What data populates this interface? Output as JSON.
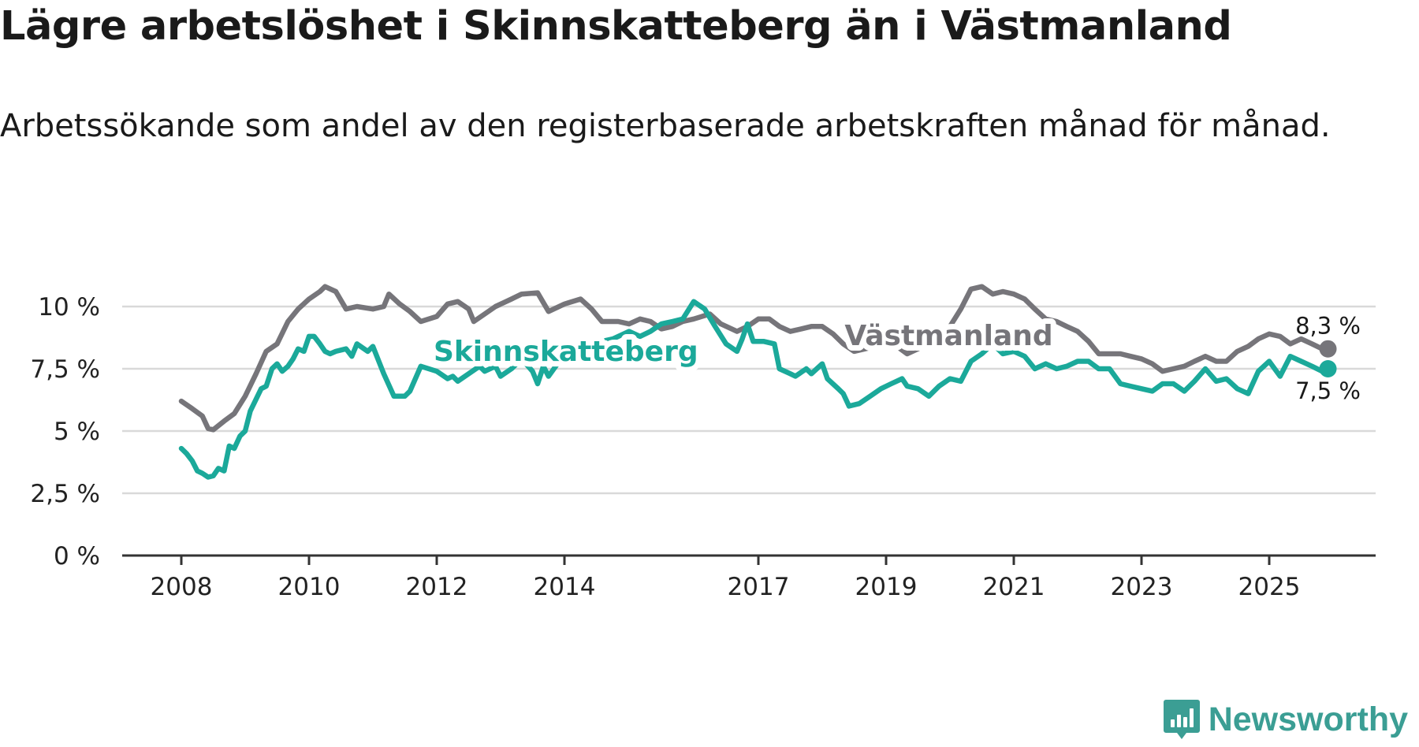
{
  "title": "Lägre arbetslöshet i Skinnskatteberg än i Västmanland",
  "subtitle": "Arbetssökande som andel av den registerbaserade arbetskraften månad för månad.",
  "brand": {
    "name": "Newsworthy",
    "icon": "newsworthy-logo-icon",
    "color": "#3b9e94"
  },
  "chart_data": {
    "type": "line",
    "title": "Lägre arbetslöshet i Skinnskatteberg än i Västmanland",
    "subtitle": "Arbetssökande som andel av den registerbaserade arbetskraften månad för månad.",
    "xlabel": "",
    "ylabel": "",
    "xlim": [
      2008,
      2026
    ],
    "ylim": [
      0,
      10.5
    ],
    "y_ticks": [
      0,
      2.5,
      5,
      7.5,
      10
    ],
    "y_tick_labels": [
      "0 %",
      "2,5 %",
      "5 %",
      "7,5 %",
      "10 %"
    ],
    "x_ticks": [
      2008,
      2010,
      2012,
      2014,
      2017,
      2019,
      2021,
      2023,
      2025
    ],
    "x_tick_labels": [
      "2008",
      "2010",
      "2012",
      "2014",
      "2017",
      "2019",
      "2021",
      "2023",
      "2025"
    ],
    "grid": true,
    "series": [
      {
        "name": "Västmanland",
        "color": "#76757a",
        "label_position": "2018.2",
        "end_label": "8,3 %",
        "points": [
          [
            2008.0,
            6.2
          ],
          [
            2008.17,
            5.9
          ],
          [
            2008.33,
            5.6
          ],
          [
            2008.42,
            5.1
          ],
          [
            2008.5,
            5.05
          ],
          [
            2008.67,
            5.4
          ],
          [
            2008.83,
            5.7
          ],
          [
            2009.0,
            6.4
          ],
          [
            2009.17,
            7.3
          ],
          [
            2009.33,
            8.2
          ],
          [
            2009.5,
            8.5
          ],
          [
            2009.67,
            9.4
          ],
          [
            2009.83,
            9.9
          ],
          [
            2010.0,
            10.3
          ],
          [
            2010.17,
            10.6
          ],
          [
            2010.25,
            10.8
          ],
          [
            2010.42,
            10.6
          ],
          [
            2010.58,
            9.9
          ],
          [
            2010.75,
            10.0
          ],
          [
            2011.0,
            9.9
          ],
          [
            2011.17,
            10.0
          ],
          [
            2011.25,
            10.5
          ],
          [
            2011.42,
            10.1
          ],
          [
            2011.58,
            9.8
          ],
          [
            2011.75,
            9.4
          ],
          [
            2012.0,
            9.6
          ],
          [
            2012.17,
            10.1
          ],
          [
            2012.33,
            10.2
          ],
          [
            2012.5,
            9.9
          ],
          [
            2012.58,
            9.4
          ],
          [
            2012.75,
            9.7
          ],
          [
            2012.92,
            10.0
          ],
          [
            2013.17,
            10.3
          ],
          [
            2013.33,
            10.5
          ],
          [
            2013.58,
            10.55
          ],
          [
            2013.75,
            9.8
          ],
          [
            2014.0,
            10.1
          ],
          [
            2014.25,
            10.3
          ],
          [
            2014.42,
            9.9
          ],
          [
            2014.58,
            9.4
          ],
          [
            2014.83,
            9.4
          ],
          [
            2015.0,
            9.3
          ],
          [
            2015.17,
            9.5
          ],
          [
            2015.33,
            9.4
          ],
          [
            2015.5,
            9.1
          ],
          [
            2015.67,
            9.2
          ],
          [
            2015.83,
            9.4
          ],
          [
            2016.0,
            9.5
          ],
          [
            2016.25,
            9.7
          ],
          [
            2016.42,
            9.3
          ],
          [
            2016.67,
            9.0
          ],
          [
            2016.83,
            9.2
          ],
          [
            2017.0,
            9.5
          ],
          [
            2017.17,
            9.5
          ],
          [
            2017.33,
            9.2
          ],
          [
            2017.5,
            9.0
          ],
          [
            2017.67,
            9.1
          ],
          [
            2017.83,
            9.2
          ],
          [
            2018.0,
            9.2
          ],
          [
            2018.17,
            8.9
          ],
          [
            2018.33,
            8.5
          ],
          [
            2018.5,
            8.2
          ],
          [
            2018.67,
            8.3
          ],
          [
            2018.83,
            8.4
          ],
          [
            2019.0,
            8.5
          ],
          [
            2019.17,
            8.4
          ],
          [
            2019.33,
            8.1
          ],
          [
            2019.5,
            8.3
          ],
          [
            2019.67,
            8.6
          ],
          [
            2019.83,
            8.7
          ],
          [
            2020.0,
            9.2
          ],
          [
            2020.17,
            9.9
          ],
          [
            2020.33,
            10.7
          ],
          [
            2020.5,
            10.8
          ],
          [
            2020.67,
            10.5
          ],
          [
            2020.83,
            10.6
          ],
          [
            2021.0,
            10.5
          ],
          [
            2021.17,
            10.3
          ],
          [
            2021.33,
            9.9
          ],
          [
            2021.5,
            9.5
          ],
          [
            2021.67,
            9.4
          ],
          [
            2021.83,
            9.2
          ],
          [
            2022.0,
            9.0
          ],
          [
            2022.17,
            8.6
          ],
          [
            2022.33,
            8.1
          ],
          [
            2022.5,
            8.1
          ],
          [
            2022.67,
            8.1
          ],
          [
            2022.83,
            8.0
          ],
          [
            2023.0,
            7.9
          ],
          [
            2023.17,
            7.7
          ],
          [
            2023.33,
            7.4
          ],
          [
            2023.5,
            7.5
          ],
          [
            2023.67,
            7.6
          ],
          [
            2023.83,
            7.8
          ],
          [
            2024.0,
            8.0
          ],
          [
            2024.17,
            7.8
          ],
          [
            2024.33,
            7.8
          ],
          [
            2024.5,
            8.2
          ],
          [
            2024.67,
            8.4
          ],
          [
            2024.83,
            8.7
          ],
          [
            2025.0,
            8.9
          ],
          [
            2025.17,
            8.8
          ],
          [
            2025.33,
            8.5
          ],
          [
            2025.5,
            8.7
          ],
          [
            2025.67,
            8.5
          ],
          [
            2025.83,
            8.3
          ],
          [
            2025.92,
            8.3
          ]
        ]
      },
      {
        "name": "Skinnskatteberg",
        "color": "#1ba99a",
        "label_position": "2010.9",
        "end_label": "7,5 %",
        "points": [
          [
            2008.0,
            4.3
          ],
          [
            2008.08,
            4.1
          ],
          [
            2008.17,
            3.8
          ],
          [
            2008.25,
            3.4
          ],
          [
            2008.33,
            3.3
          ],
          [
            2008.42,
            3.15
          ],
          [
            2008.5,
            3.2
          ],
          [
            2008.58,
            3.5
          ],
          [
            2008.67,
            3.4
          ],
          [
            2008.75,
            4.4
          ],
          [
            2008.83,
            4.3
          ],
          [
            2008.92,
            4.8
          ],
          [
            2009.0,
            5.0
          ],
          [
            2009.08,
            5.8
          ],
          [
            2009.25,
            6.7
          ],
          [
            2009.33,
            6.8
          ],
          [
            2009.42,
            7.5
          ],
          [
            2009.5,
            7.7
          ],
          [
            2009.58,
            7.4
          ],
          [
            2009.67,
            7.6
          ],
          [
            2009.75,
            7.9
          ],
          [
            2009.83,
            8.3
          ],
          [
            2009.92,
            8.2
          ],
          [
            2010.0,
            8.8
          ],
          [
            2010.08,
            8.8
          ],
          [
            2010.17,
            8.5
          ],
          [
            2010.25,
            8.2
          ],
          [
            2010.33,
            8.1
          ],
          [
            2010.42,
            8.2
          ],
          [
            2010.58,
            8.3
          ],
          [
            2010.67,
            8.0
          ],
          [
            2010.75,
            8.5
          ],
          [
            2010.92,
            8.2
          ],
          [
            2011.0,
            8.4
          ],
          [
            2011.17,
            7.3
          ],
          [
            2011.33,
            6.4
          ],
          [
            2011.5,
            6.4
          ],
          [
            2011.58,
            6.6
          ],
          [
            2011.75,
            7.6
          ],
          [
            2012.0,
            7.4
          ],
          [
            2012.17,
            7.1
          ],
          [
            2012.25,
            7.2
          ],
          [
            2012.33,
            7.0
          ],
          [
            2012.5,
            7.3
          ],
          [
            2012.67,
            7.6
          ],
          [
            2012.75,
            7.4
          ],
          [
            2012.92,
            7.6
          ],
          [
            2013.0,
            7.2
          ],
          [
            2013.17,
            7.5
          ],
          [
            2013.33,
            7.9
          ],
          [
            2013.5,
            7.4
          ],
          [
            2013.58,
            6.9
          ],
          [
            2013.67,
            7.6
          ],
          [
            2013.75,
            7.2
          ],
          [
            2013.92,
            7.8
          ],
          [
            2014.08,
            7.8
          ],
          [
            2014.33,
            8.1
          ],
          [
            2014.58,
            8.6
          ],
          [
            2014.75,
            8.7
          ],
          [
            2015.0,
            9.0
          ],
          [
            2015.17,
            8.8
          ],
          [
            2015.33,
            9.0
          ],
          [
            2015.5,
            9.3
          ],
          [
            2015.67,
            9.4
          ],
          [
            2015.83,
            9.5
          ],
          [
            2016.0,
            10.2
          ],
          [
            2016.17,
            9.9
          ],
          [
            2016.33,
            9.2
          ],
          [
            2016.5,
            8.5
          ],
          [
            2016.67,
            8.2
          ],
          [
            2016.75,
            8.7
          ],
          [
            2016.83,
            9.3
          ],
          [
            2016.92,
            8.6
          ],
          [
            2017.08,
            8.6
          ],
          [
            2017.25,
            8.5
          ],
          [
            2017.33,
            7.5
          ],
          [
            2017.5,
            7.3
          ],
          [
            2017.58,
            7.2
          ],
          [
            2017.75,
            7.5
          ],
          [
            2017.83,
            7.3
          ],
          [
            2018.0,
            7.7
          ],
          [
            2018.08,
            7.1
          ],
          [
            2018.25,
            6.7
          ],
          [
            2018.33,
            6.5
          ],
          [
            2018.42,
            6.0
          ],
          [
            2018.58,
            6.1
          ],
          [
            2018.75,
            6.4
          ],
          [
            2018.92,
            6.7
          ],
          [
            2019.08,
            6.9
          ],
          [
            2019.25,
            7.1
          ],
          [
            2019.33,
            6.8
          ],
          [
            2019.5,
            6.7
          ],
          [
            2019.67,
            6.4
          ],
          [
            2019.83,
            6.8
          ],
          [
            2020.0,
            7.1
          ],
          [
            2020.17,
            7.0
          ],
          [
            2020.33,
            7.8
          ],
          [
            2020.5,
            8.1
          ],
          [
            2020.67,
            8.5
          ],
          [
            2020.83,
            8.1
          ],
          [
            2021.0,
            8.2
          ],
          [
            2021.17,
            8.0
          ],
          [
            2021.33,
            7.5
          ],
          [
            2021.5,
            7.7
          ],
          [
            2021.67,
            7.5
          ],
          [
            2021.83,
            7.6
          ],
          [
            2022.0,
            7.8
          ],
          [
            2022.17,
            7.8
          ],
          [
            2022.33,
            7.5
          ],
          [
            2022.5,
            7.5
          ],
          [
            2022.67,
            6.9
          ],
          [
            2022.83,
            6.8
          ],
          [
            2023.0,
            6.7
          ],
          [
            2023.17,
            6.6
          ],
          [
            2023.33,
            6.9
          ],
          [
            2023.5,
            6.9
          ],
          [
            2023.67,
            6.6
          ],
          [
            2023.83,
            7.0
          ],
          [
            2024.0,
            7.5
          ],
          [
            2024.17,
            7.0
          ],
          [
            2024.33,
            7.1
          ],
          [
            2024.5,
            6.7
          ],
          [
            2024.67,
            6.5
          ],
          [
            2024.83,
            7.4
          ],
          [
            2025.0,
            7.8
          ],
          [
            2025.17,
            7.2
          ],
          [
            2025.33,
            8.0
          ],
          [
            2025.5,
            7.8
          ],
          [
            2025.67,
            7.6
          ],
          [
            2025.83,
            7.4
          ],
          [
            2025.92,
            7.5
          ]
        ]
      }
    ]
  }
}
